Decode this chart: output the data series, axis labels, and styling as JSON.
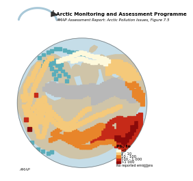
{
  "title_line1": "Arctic Monitoring and Assessment Programme",
  "title_line2": "AMAP Assessment Report: Arctic Pollution Issues, Figure 7.5",
  "legend_title": "Pb, to",
  "legend_labels": [
    "<1",
    "1 - 10",
    "10 - 100",
    "100 - 1 000",
    ">1 000"
  ],
  "legend_colors": [
    "#FEF9DC",
    "#F5C97A",
    "#E8852A",
    "#C62A18",
    "#8B0A0A"
  ],
  "no_report_color": "#B8B8B8",
  "no_report_label": "No reported emissions",
  "footer_text": "AMAP",
  "bg_color": "#FFFFFF",
  "ocean_color": "#C5DDE8",
  "land_color": "#CFC4A8",
  "teal_color": "#5AADBA",
  "title_fontsize": 5.2,
  "subtitle_fontsize": 4.0,
  "legend_fontsize": 4.2,
  "footer_fontsize": 4.0
}
